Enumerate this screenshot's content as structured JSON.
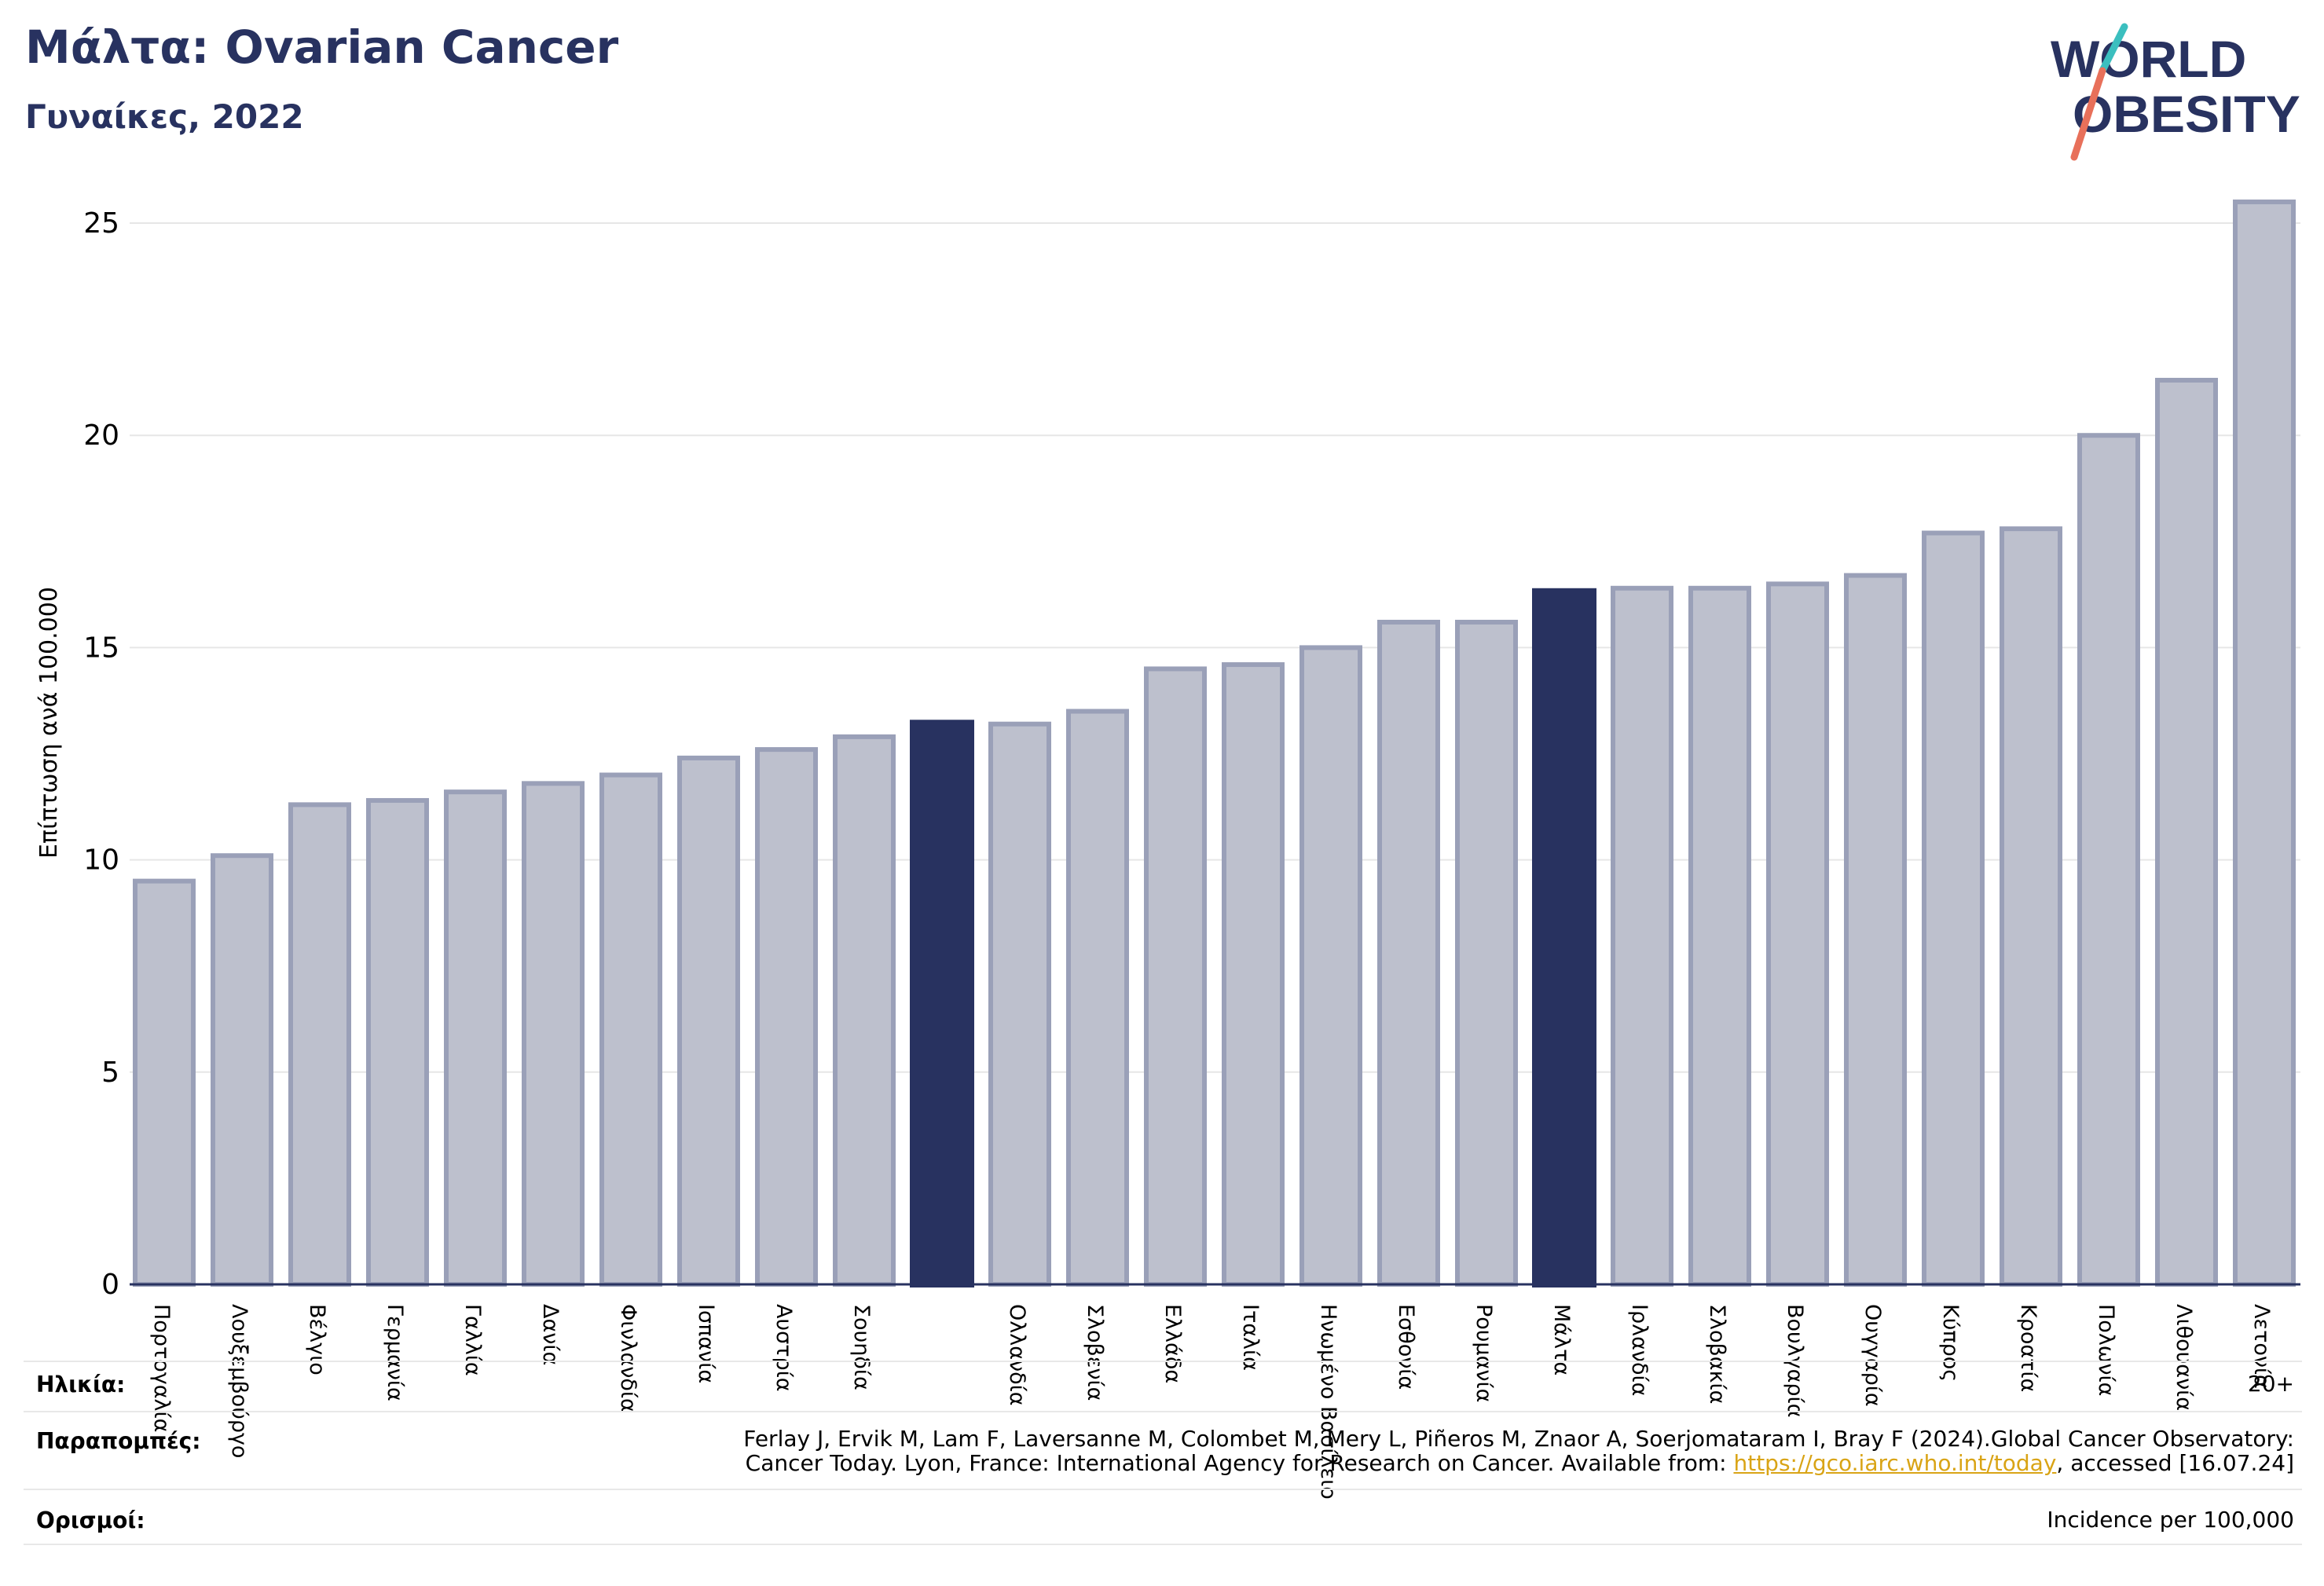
{
  "header": {
    "title": "Μάλτα: Ovarian Cancer",
    "subtitle": "Γυναίκες, 2022"
  },
  "logo": {
    "line1": "WORLD",
    "line2": "OBESITY"
  },
  "colors": {
    "highlight": "#283260",
    "bar_fill": "#bdc0cd",
    "bar_stroke": "#9aa0b8",
    "grid": "#e6e6e6",
    "title": "#283260",
    "link": "#d9a416",
    "logo_slash_teal": "#3bbfbf",
    "logo_slash_coral": "#e8705a"
  },
  "chart_data": {
    "type": "bar",
    "ylabel": "Επίπτωση ανά 100.000",
    "xlabel": "",
    "ylim": [
      0,
      26
    ],
    "yticks": [
      0,
      5,
      10,
      15,
      20,
      25
    ],
    "grid": true,
    "categories": [
      "Πορτογαλία",
      "Λουξεμβούργο",
      "Βέλγιο",
      "Γερμανία",
      "Γαλλία",
      "Δανία",
      "Φινλανδία",
      "Ισπανία",
      "Αυστρία",
      "Σουηδία",
      "",
      "Ολλανδία",
      "Σλοβενία",
      "Ελλάδα",
      "Ιταλία",
      "Ηνωμένο Βασίλειο",
      "Εσθονία",
      "Ρουμανία",
      "Μάλτα",
      "Ιρλανδία",
      "Σλοβακία",
      "Βουλγαρία",
      "Ουγγαρία",
      "Κύπρος",
      "Κροατία",
      "Πολωνία",
      "Λιθουανία",
      "Λετονία"
    ],
    "values": [
      9.5,
      10.1,
      11.3,
      11.4,
      11.6,
      11.8,
      12.0,
      12.4,
      12.6,
      12.9,
      13.3,
      13.2,
      13.5,
      14.5,
      14.6,
      15.0,
      15.6,
      15.6,
      16.4,
      16.4,
      16.4,
      16.5,
      16.7,
      17.7,
      17.8,
      20.0,
      21.3,
      25.5
    ],
    "highlighted": [
      10,
      18
    ]
  },
  "info": {
    "age_label": "Ηλικία:",
    "age_value": "20+",
    "refs_label": "Παραπομπές:",
    "refs_text_1": "Ferlay J, Ervik M, Lam F, Laversanne M, Colombet M, Mery L, Piñeros M, Znaor A, Soerjomataram I, Bray F (2024).Global Cancer Observatory:",
    "refs_text_2": "Cancer Today. Lyon, France: International Agency for Research on Cancer. Available from: ",
    "refs_link": "https://gco.iarc.who.int/today",
    "refs_text_3": ", accessed [16.07.24]",
    "defs_label": "Ορισμοί:",
    "defs_value": "Incidence per 100,000"
  }
}
